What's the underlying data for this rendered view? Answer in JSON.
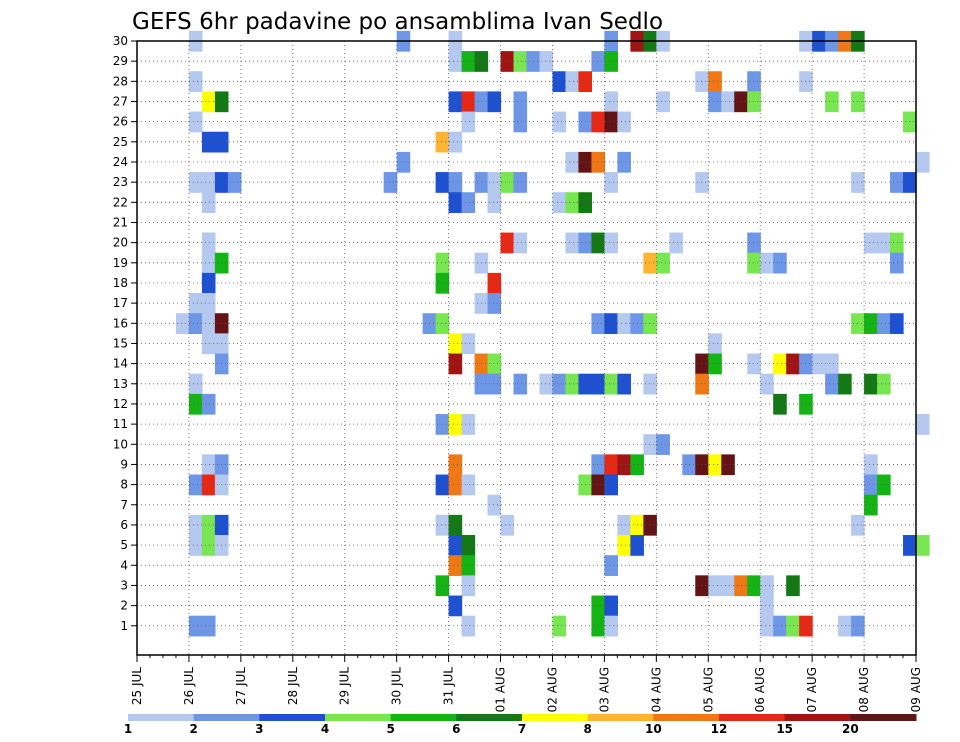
{
  "chart_data": {
    "type": "heatmap",
    "title": "GEFS 6hr padavine po ansamblima Ivan Sedlo",
    "x_step_hours": 6,
    "x_ticks": [
      "25 JUL",
      "26 JUL",
      "27 JUL",
      "28 JUL",
      "29 JUL",
      "30 JUL",
      "31 JUL",
      "01 AUG",
      "02 AUG",
      "03 AUG",
      "04 AUG",
      "05 AUG",
      "06 AUG",
      "07 AUG",
      "08 AUG",
      "09 AUG"
    ],
    "y_ticks": [
      1,
      2,
      3,
      4,
      5,
      6,
      7,
      8,
      9,
      10,
      11,
      12,
      13,
      14,
      15,
      16,
      17,
      18,
      19,
      20,
      21,
      22,
      23,
      24,
      25,
      26,
      27,
      28,
      29,
      30
    ],
    "grid": true,
    "colorbar": {
      "placement": "bottom",
      "labels": [
        "1",
        "2",
        "3",
        "4",
        "5",
        "6",
        "7",
        "8",
        "10",
        "12",
        "15",
        "20"
      ],
      "colors": [
        "#b4c8f0",
        "#6e96e6",
        "#1e50d2",
        "#78e650",
        "#14b414",
        "#147814",
        "#ffff00",
        "#ffb432",
        "#f07814",
        "#e62814",
        "#a01414",
        "#641414"
      ]
    },
    "cells": [
      [
        30,
        "26 JUL",
        0,
        1
      ],
      [
        30,
        "30 JUL",
        0,
        2
      ],
      [
        30,
        "31 JUL",
        0,
        1
      ],
      [
        30,
        "03 AUG",
        0,
        2
      ],
      [
        30,
        "03 AUG",
        2,
        11
      ],
      [
        30,
        "03 AUG",
        3,
        6
      ],
      [
        30,
        "04 AUG",
        0,
        1
      ],
      [
        30,
        "06 AUG",
        3,
        1
      ],
      [
        30,
        "07 AUG",
        0,
        3
      ],
      [
        30,
        "07 AUG",
        1,
        2
      ],
      [
        30,
        "07 AUG",
        2,
        9
      ],
      [
        30,
        "07 AUG",
        3,
        6
      ],
      [
        29,
        "31 JUL",
        0,
        1
      ],
      [
        29,
        "31 JUL",
        1,
        5
      ],
      [
        29,
        "31 JUL",
        2,
        6
      ],
      [
        29,
        "01 AUG",
        0,
        11
      ],
      [
        29,
        "01 AUG",
        1,
        4
      ],
      [
        29,
        "01 AUG",
        2,
        2
      ],
      [
        29,
        "01 AUG",
        3,
        1
      ],
      [
        29,
        "02 AUG",
        3,
        2
      ],
      [
        29,
        "03 AUG",
        0,
        5
      ],
      [
        28,
        "26 JUL",
        0,
        1
      ],
      [
        28,
        "02 AUG",
        0,
        3
      ],
      [
        28,
        "02 AUG",
        1,
        1
      ],
      [
        28,
        "02 AUG",
        2,
        10
      ],
      [
        28,
        "04 AUG",
        3,
        1
      ],
      [
        28,
        "05 AUG",
        0,
        9
      ],
      [
        28,
        "05 AUG",
        3,
        2
      ],
      [
        28,
        "06 AUG",
        3,
        1
      ],
      [
        27,
        "26 JUL",
        1,
        7
      ],
      [
        27,
        "26 JUL",
        2,
        6
      ],
      [
        27,
        "31 JUL",
        0,
        3
      ],
      [
        27,
        "31 JUL",
        1,
        10
      ],
      [
        27,
        "31 JUL",
        2,
        2
      ],
      [
        27,
        "31 JUL",
        3,
        3
      ],
      [
        27,
        "01 AUG",
        1,
        2
      ],
      [
        27,
        "03 AUG",
        0,
        1
      ],
      [
        27,
        "04 AUG",
        0,
        1
      ],
      [
        27,
        "05 AUG",
        0,
        2
      ],
      [
        27,
        "05 AUG",
        1,
        1
      ],
      [
        27,
        "05 AUG",
        2,
        12
      ],
      [
        27,
        "05 AUG",
        3,
        4
      ],
      [
        27,
        "07 AUG",
        1,
        4
      ],
      [
        27,
        "07 AUG",
        3,
        4
      ],
      [
        26,
        "26 JUL",
        0,
        1
      ],
      [
        26,
        "31 JUL",
        1,
        1
      ],
      [
        26,
        "01 AUG",
        1,
        2
      ],
      [
        26,
        "02 AUG",
        0,
        1
      ],
      [
        26,
        "02 AUG",
        2,
        2
      ],
      [
        26,
        "02 AUG",
        3,
        10
      ],
      [
        26,
        "03 AUG",
        0,
        12
      ],
      [
        26,
        "03 AUG",
        1,
        1
      ],
      [
        26,
        "08 AUG",
        3,
        4
      ],
      [
        25,
        "26 JUL",
        1,
        3
      ],
      [
        25,
        "26 JUL",
        2,
        3
      ],
      [
        25,
        "30 JUL",
        3,
        8
      ],
      [
        25,
        "31 JUL",
        0,
        1
      ],
      [
        24,
        "30 JUL",
        0,
        2
      ],
      [
        24,
        "02 AUG",
        1,
        1
      ],
      [
        24,
        "02 AUG",
        2,
        12
      ],
      [
        24,
        "02 AUG",
        3,
        9
      ],
      [
        24,
        "03 AUG",
        1,
        2
      ],
      [
        24,
        "09 AUG",
        0,
        1
      ],
      [
        23,
        "26 JUL",
        0,
        1
      ],
      [
        23,
        "26 JUL",
        1,
        1
      ],
      [
        23,
        "26 JUL",
        2,
        3
      ],
      [
        23,
        "26 JUL",
        3,
        2
      ],
      [
        23,
        "29 JUL",
        3,
        2
      ],
      [
        23,
        "30 JUL",
        3,
        3
      ],
      [
        23,
        "31 JUL",
        0,
        2
      ],
      [
        23,
        "31 JUL",
        2,
        2
      ],
      [
        23,
        "31 JUL",
        3,
        1
      ],
      [
        23,
        "01 AUG",
        0,
        4
      ],
      [
        23,
        "01 AUG",
        1,
        2
      ],
      [
        23,
        "03 AUG",
        0,
        1
      ],
      [
        23,
        "04 AUG",
        3,
        1
      ],
      [
        23,
        "07 AUG",
        3,
        1
      ],
      [
        23,
        "08 AUG",
        2,
        2
      ],
      [
        23,
        "08 AUG",
        3,
        3
      ],
      [
        22,
        "26 JUL",
        1,
        1
      ],
      [
        22,
        "31 JUL",
        0,
        3
      ],
      [
        22,
        "31 JUL",
        1,
        2
      ],
      [
        22,
        "31 JUL",
        3,
        1
      ],
      [
        22,
        "02 AUG",
        0,
        1
      ],
      [
        22,
        "02 AUG",
        1,
        4
      ],
      [
        22,
        "02 AUG",
        2,
        6
      ],
      [
        20,
        "26 JUL",
        1,
        1
      ],
      [
        20,
        "01 AUG",
        0,
        10
      ],
      [
        20,
        "01 AUG",
        1,
        1
      ],
      [
        20,
        "02 AUG",
        1,
        1
      ],
      [
        20,
        "02 AUG",
        2,
        2
      ],
      [
        20,
        "02 AUG",
        3,
        6
      ],
      [
        20,
        "03 AUG",
        0,
        1
      ],
      [
        20,
        "04 AUG",
        1,
        1
      ],
      [
        20,
        "05 AUG",
        3,
        2
      ],
      [
        20,
        "08 AUG",
        0,
        1
      ],
      [
        20,
        "08 AUG",
        1,
        1
      ],
      [
        20,
        "08 AUG",
        2,
        4
      ],
      [
        19,
        "26 JUL",
        1,
        1
      ],
      [
        19,
        "26 JUL",
        2,
        5
      ],
      [
        19,
        "30 JUL",
        3,
        4
      ],
      [
        19,
        "31 JUL",
        2,
        1
      ],
      [
        19,
        "03 AUG",
        3,
        8
      ],
      [
        19,
        "04 AUG",
        0,
        4
      ],
      [
        19,
        "05 AUG",
        3,
        4
      ],
      [
        19,
        "06 AUG",
        0,
        1
      ],
      [
        19,
        "06 AUG",
        1,
        2
      ],
      [
        19,
        "08 AUG",
        2,
        2
      ],
      [
        18,
        "26 JUL",
        1,
        3
      ],
      [
        18,
        "30 JUL",
        3,
        5
      ],
      [
        18,
        "31 JUL",
        3,
        10
      ],
      [
        17,
        "26 JUL",
        0,
        1
      ],
      [
        17,
        "26 JUL",
        1,
        1
      ],
      [
        17,
        "31 JUL",
        2,
        1
      ],
      [
        17,
        "31 JUL",
        3,
        2
      ],
      [
        16,
        "25 JUL",
        3,
        1
      ],
      [
        16,
        "26 JUL",
        0,
        2
      ],
      [
        16,
        "26 JUL",
        1,
        1
      ],
      [
        16,
        "26 JUL",
        2,
        12
      ],
      [
        16,
        "30 JUL",
        2,
        2
      ],
      [
        16,
        "30 JUL",
        3,
        4
      ],
      [
        16,
        "02 AUG",
        3,
        2
      ],
      [
        16,
        "03 AUG",
        0,
        3
      ],
      [
        16,
        "03 AUG",
        1,
        1
      ],
      [
        16,
        "03 AUG",
        2,
        2
      ],
      [
        16,
        "03 AUG",
        3,
        4
      ],
      [
        16,
        "07 AUG",
        3,
        4
      ],
      [
        16,
        "08 AUG",
        0,
        5
      ],
      [
        16,
        "08 AUG",
        1,
        2
      ],
      [
        16,
        "08 AUG",
        2,
        3
      ],
      [
        15,
        "26 JUL",
        1,
        1
      ],
      [
        15,
        "26 JUL",
        2,
        1
      ],
      [
        15,
        "31 JUL",
        0,
        7
      ],
      [
        15,
        "31 JUL",
        1,
        1
      ],
      [
        15,
        "05 AUG",
        0,
        1
      ],
      [
        14,
        "26 JUL",
        2,
        2
      ],
      [
        14,
        "31 JUL",
        0,
        11
      ],
      [
        14,
        "31 JUL",
        2,
        9
      ],
      [
        14,
        "31 JUL",
        3,
        4
      ],
      [
        14,
        "04 AUG",
        3,
        12
      ],
      [
        14,
        "05 AUG",
        0,
        5
      ],
      [
        14,
        "05 AUG",
        3,
        1
      ],
      [
        14,
        "06 AUG",
        1,
        7
      ],
      [
        14,
        "06 AUG",
        2,
        11
      ],
      [
        14,
        "06 AUG",
        3,
        2
      ],
      [
        14,
        "07 AUG",
        0,
        1
      ],
      [
        14,
        "07 AUG",
        1,
        1
      ],
      [
        13,
        "26 JUL",
        0,
        1
      ],
      [
        13,
        "31 JUL",
        2,
        2
      ],
      [
        13,
        "31 JUL",
        3,
        2
      ],
      [
        13,
        "01 AUG",
        1,
        2
      ],
      [
        13,
        "01 AUG",
        3,
        1
      ],
      [
        13,
        "02 AUG",
        0,
        2
      ],
      [
        13,
        "02 AUG",
        1,
        4
      ],
      [
        13,
        "02 AUG",
        2,
        3
      ],
      [
        13,
        "02 AUG",
        3,
        3
      ],
      [
        13,
        "03 AUG",
        0,
        4
      ],
      [
        13,
        "03 AUG",
        1,
        3
      ],
      [
        13,
        "03 AUG",
        3,
        1
      ],
      [
        13,
        "04 AUG",
        3,
        9
      ],
      [
        13,
        "06 AUG",
        0,
        1
      ],
      [
        13,
        "07 AUG",
        1,
        2
      ],
      [
        13,
        "07 AUG",
        2,
        6
      ],
      [
        13,
        "08 AUG",
        0,
        6
      ],
      [
        13,
        "08 AUG",
        1,
        4
      ],
      [
        12,
        "26 JUL",
        0,
        5
      ],
      [
        12,
        "26 JUL",
        1,
        2
      ],
      [
        12,
        "06 AUG",
        1,
        6
      ],
      [
        12,
        "06 AUG",
        3,
        5
      ],
      [
        11,
        "30 JUL",
        3,
        2
      ],
      [
        11,
        "31 JUL",
        0,
        7
      ],
      [
        11,
        "31 JUL",
        1,
        1
      ],
      [
        11,
        "09 AUG",
        0,
        1
      ],
      [
        10,
        "03 AUG",
        3,
        1
      ],
      [
        10,
        "04 AUG",
        0,
        2
      ],
      [
        9,
        "26 JUL",
        1,
        1
      ],
      [
        9,
        "26 JUL",
        2,
        2
      ],
      [
        9,
        "31 JUL",
        0,
        9
      ],
      [
        9,
        "02 AUG",
        3,
        2
      ],
      [
        9,
        "03 AUG",
        0,
        10
      ],
      [
        9,
        "03 AUG",
        1,
        11
      ],
      [
        9,
        "03 AUG",
        2,
        5
      ],
      [
        9,
        "04 AUG",
        2,
        2
      ],
      [
        9,
        "04 AUG",
        3,
        12
      ],
      [
        9,
        "05 AUG",
        0,
        7
      ],
      [
        9,
        "05 AUG",
        1,
        12
      ],
      [
        9,
        "08 AUG",
        0,
        1
      ],
      [
        8,
        "26 JUL",
        0,
        2
      ],
      [
        8,
        "26 JUL",
        1,
        10
      ],
      [
        8,
        "26 JUL",
        2,
        1
      ],
      [
        8,
        "30 JUL",
        3,
        3
      ],
      [
        8,
        "31 JUL",
        0,
        9
      ],
      [
        8,
        "31 JUL",
        1,
        1
      ],
      [
        8,
        "02 AUG",
        2,
        4
      ],
      [
        8,
        "02 AUG",
        3,
        12
      ],
      [
        8,
        "03 AUG",
        0,
        3
      ],
      [
        8,
        "08 AUG",
        0,
        2
      ],
      [
        8,
        "08 AUG",
        1,
        5
      ],
      [
        7,
        "31 JUL",
        3,
        1
      ],
      [
        7,
        "08 AUG",
        0,
        5
      ],
      [
        6,
        "26 JUL",
        0,
        1
      ],
      [
        6,
        "26 JUL",
        1,
        4
      ],
      [
        6,
        "26 JUL",
        2,
        3
      ],
      [
        6,
        "30 JUL",
        3,
        1
      ],
      [
        6,
        "31 JUL",
        0,
        6
      ],
      [
        6,
        "01 AUG",
        0,
        1
      ],
      [
        6,
        "03 AUG",
        1,
        1
      ],
      [
        6,
        "03 AUG",
        2,
        7
      ],
      [
        6,
        "03 AUG",
        3,
        12
      ],
      [
        6,
        "07 AUG",
        3,
        1
      ],
      [
        5,
        "26 JUL",
        0,
        1
      ],
      [
        5,
        "26 JUL",
        1,
        4
      ],
      [
        5,
        "26 JUL",
        2,
        1
      ],
      [
        5,
        "31 JUL",
        0,
        3
      ],
      [
        5,
        "31 JUL",
        1,
        6
      ],
      [
        5,
        "03 AUG",
        1,
        7
      ],
      [
        5,
        "03 AUG",
        2,
        3
      ],
      [
        5,
        "08 AUG",
        3,
        3
      ],
      [
        5,
        "09 AUG",
        0,
        4
      ],
      [
        4,
        "31 JUL",
        0,
        9
      ],
      [
        4,
        "31 JUL",
        1,
        5
      ],
      [
        4,
        "03 AUG",
        0,
        2
      ],
      [
        3,
        "30 JUL",
        3,
        5
      ],
      [
        3,
        "31 JUL",
        1,
        1
      ],
      [
        3,
        "04 AUG",
        3,
        12
      ],
      [
        3,
        "05 AUG",
        0,
        1
      ],
      [
        3,
        "05 AUG",
        1,
        1
      ],
      [
        3,
        "05 AUG",
        2,
        9
      ],
      [
        3,
        "05 AUG",
        3,
        5
      ],
      [
        3,
        "06 AUG",
        0,
        1
      ],
      [
        3,
        "06 AUG",
        2,
        6
      ],
      [
        2,
        "31 JUL",
        0,
        3
      ],
      [
        2,
        "02 AUG",
        3,
        5
      ],
      [
        2,
        "03 AUG",
        0,
        3
      ],
      [
        2,
        "06 AUG",
        0,
        1
      ],
      [
        1,
        "26 JUL",
        0,
        2
      ],
      [
        1,
        "26 JUL",
        1,
        2
      ],
      [
        1,
        "31 JUL",
        1,
        1
      ],
      [
        1,
        "02 AUG",
        0,
        4
      ],
      [
        1,
        "02 AUG",
        3,
        5
      ],
      [
        1,
        "03 AUG",
        0,
        1
      ],
      [
        1,
        "06 AUG",
        0,
        1
      ],
      [
        1,
        "06 AUG",
        1,
        2
      ],
      [
        1,
        "06 AUG",
        2,
        4
      ],
      [
        1,
        "06 AUG",
        3,
        10
      ],
      [
        1,
        "07 AUG",
        2,
        1
      ],
      [
        1,
        "07 AUG",
        3,
        2
      ]
    ]
  }
}
